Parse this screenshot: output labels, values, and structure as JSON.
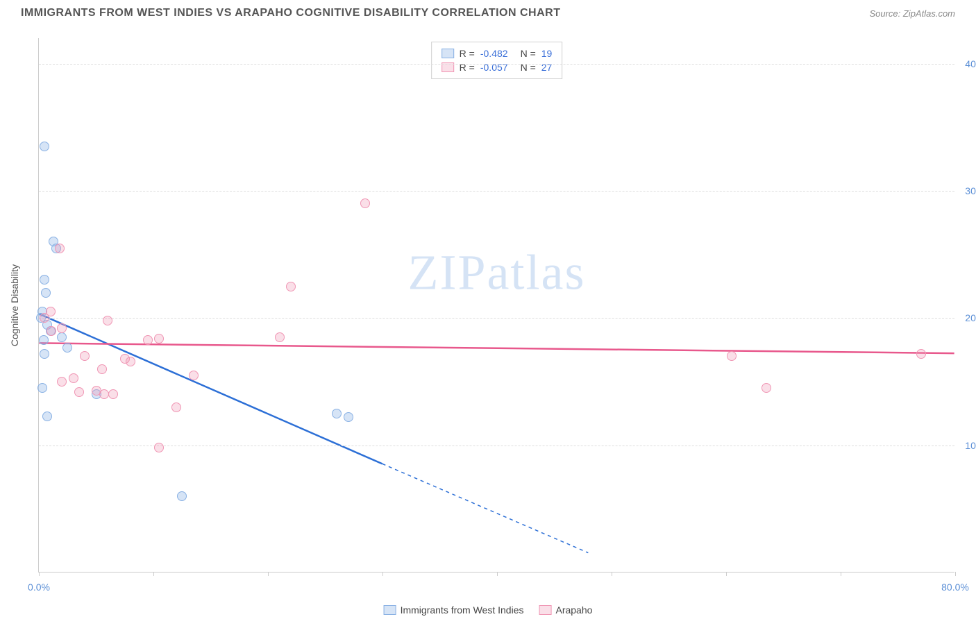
{
  "header": {
    "title": "IMMIGRANTS FROM WEST INDIES VS ARAPAHO COGNITIVE DISABILITY CORRELATION CHART",
    "source": "Source: ZipAtlas.com"
  },
  "watermark": "ZIPatlas",
  "chart": {
    "type": "scatter",
    "background_color": "#ffffff",
    "grid_color": "#dddddd",
    "axis_color": "#cccccc",
    "tick_label_color": "#5b8fd6",
    "axis_label_color": "#555555",
    "y_axis_label": "Cognitive Disability",
    "xlim": [
      0,
      80
    ],
    "ylim": [
      0,
      42
    ],
    "x_ticks": [
      0,
      10,
      20,
      30,
      40,
      50,
      60,
      70,
      80
    ],
    "x_tick_labels": {
      "0": "0.0%",
      "80": "80.0%"
    },
    "y_ticks": [
      10,
      20,
      30,
      40
    ],
    "y_tick_labels": {
      "10": "10.0%",
      "20": "20.0%",
      "30": "30.0%",
      "40": "40.0%"
    },
    "series": [
      {
        "name": "Immigrants from West Indies",
        "color_fill": "rgba(137,177,228,0.35)",
        "color_stroke": "#89b1e4",
        "trend_color": "#2c6fd6",
        "R": "-0.482",
        "N": "19",
        "points": [
          {
            "x": 0.5,
            "y": 33.5
          },
          {
            "x": 1.3,
            "y": 26.0
          },
          {
            "x": 1.5,
            "y": 25.5
          },
          {
            "x": 0.5,
            "y": 23.0
          },
          {
            "x": 0.6,
            "y": 22.0
          },
          {
            "x": 0.3,
            "y": 20.5
          },
          {
            "x": 0.2,
            "y": 20.0
          },
          {
            "x": 0.7,
            "y": 19.5
          },
          {
            "x": 1.0,
            "y": 19.0
          },
          {
            "x": 2.0,
            "y": 18.5
          },
          {
            "x": 0.4,
            "y": 18.3
          },
          {
            "x": 2.5,
            "y": 17.7
          },
          {
            "x": 0.5,
            "y": 17.2
          },
          {
            "x": 0.3,
            "y": 14.5
          },
          {
            "x": 5.0,
            "y": 14.0
          },
          {
            "x": 0.7,
            "y": 12.3
          },
          {
            "x": 12.5,
            "y": 6.0
          },
          {
            "x": 26.0,
            "y": 12.5
          },
          {
            "x": 27.0,
            "y": 12.2
          }
        ],
        "trend": {
          "x1": 0,
          "y1": 20.3,
          "x2": 30,
          "y2": 8.5,
          "dash_x2": 48,
          "dash_y2": 1.5
        }
      },
      {
        "name": "Arapaho",
        "color_fill": "rgba(240,150,180,0.30)",
        "color_stroke": "#f096b4",
        "trend_color": "#e8588c",
        "R": "-0.057",
        "N": "27",
        "points": [
          {
            "x": 1.8,
            "y": 25.5
          },
          {
            "x": 28.5,
            "y": 29.0
          },
          {
            "x": 22.0,
            "y": 22.5
          },
          {
            "x": 1.0,
            "y": 20.5
          },
          {
            "x": 0.5,
            "y": 20.0
          },
          {
            "x": 6.0,
            "y": 19.8
          },
          {
            "x": 2.0,
            "y": 19.2
          },
          {
            "x": 1.1,
            "y": 19.0
          },
          {
            "x": 9.5,
            "y": 18.3
          },
          {
            "x": 10.5,
            "y": 18.4
          },
          {
            "x": 21.0,
            "y": 18.5
          },
          {
            "x": 4.0,
            "y": 17.0
          },
          {
            "x": 7.5,
            "y": 16.8
          },
          {
            "x": 8.0,
            "y": 16.6
          },
          {
            "x": 60.5,
            "y": 17.0
          },
          {
            "x": 77.0,
            "y": 17.2
          },
          {
            "x": 5.5,
            "y": 16.0
          },
          {
            "x": 3.0,
            "y": 15.3
          },
          {
            "x": 13.5,
            "y": 15.5
          },
          {
            "x": 2.0,
            "y": 15.0
          },
          {
            "x": 5.0,
            "y": 14.3
          },
          {
            "x": 5.7,
            "y": 14.0
          },
          {
            "x": 63.5,
            "y": 14.5
          },
          {
            "x": 12.0,
            "y": 13.0
          },
          {
            "x": 3.5,
            "y": 14.2
          },
          {
            "x": 10.5,
            "y": 9.8
          },
          {
            "x": 6.5,
            "y": 14.0
          }
        ],
        "trend": {
          "x1": 0,
          "y1": 18.0,
          "x2": 80,
          "y2": 17.2
        }
      }
    ],
    "legend_bottom": [
      {
        "series": 0,
        "label": "Immigrants from West Indies"
      },
      {
        "series": 1,
        "label": "Arapaho"
      }
    ]
  }
}
